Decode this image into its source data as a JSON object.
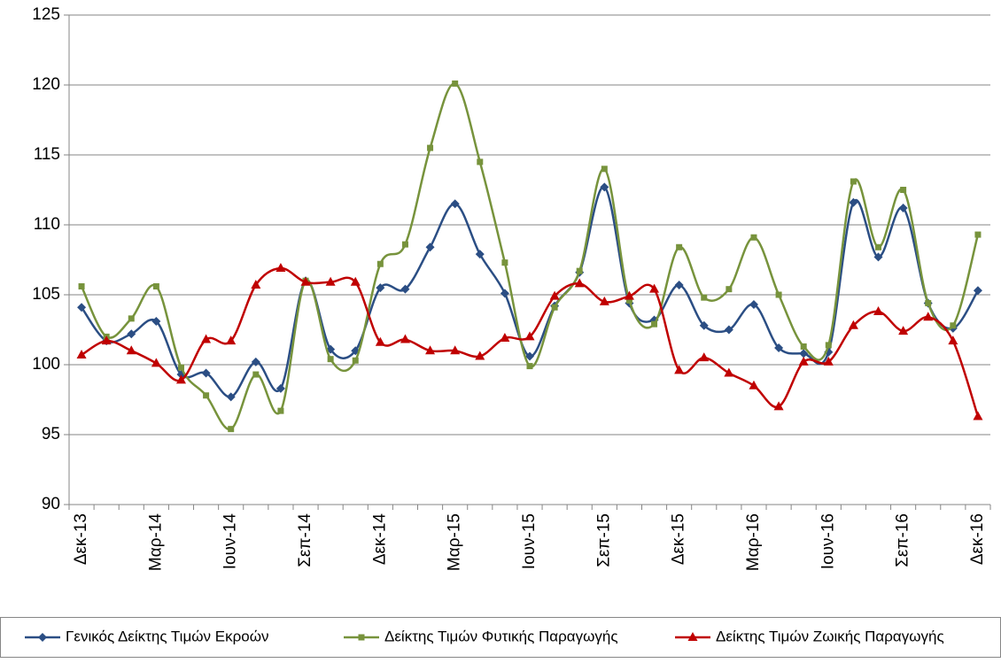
{
  "chart_data": {
    "type": "line",
    "categories": [
      "Δεκ-13",
      null,
      null,
      "Μαρ-14",
      null,
      null,
      "Ιουν-14",
      null,
      null,
      "Σεπ-14",
      null,
      null,
      "Δεκ-14",
      null,
      null,
      "Μαρ-15",
      null,
      null,
      "Ιουν-15",
      null,
      null,
      "Σεπ-15",
      null,
      null,
      "Δεκ-15",
      null,
      null,
      "Μαρ-16",
      null,
      null,
      "Ιουν-16",
      null,
      null,
      "Σεπ-16",
      null,
      null,
      "Δεκ-16"
    ],
    "series": [
      {
        "name": "Γενικός Δείκτης Τιμών Εκροών",
        "color": "#2b4e84",
        "marker": "diamond",
        "values": [
          104.1,
          101.7,
          102.2,
          103.1,
          99.3,
          99.4,
          97.7,
          100.2,
          98.3,
          106.0,
          101.1,
          101.0,
          105.5,
          105.4,
          108.4,
          111.5,
          107.9,
          105.1,
          100.6,
          104.2,
          106.6,
          112.7,
          104.4,
          103.2,
          105.7,
          102.8,
          102.5,
          104.3,
          101.2,
          100.8,
          100.9,
          111.6,
          107.7,
          111.2,
          104.4,
          102.6,
          105.3
        ]
      },
      {
        "name": "Δείκτης Τιμών Φυτικής Παραγωγής",
        "color": "#77933c",
        "marker": "square",
        "values": [
          105.6,
          102.0,
          103.3,
          105.6,
          99.8,
          97.8,
          95.4,
          99.3,
          96.7,
          106.0,
          100.4,
          100.3,
          107.2,
          108.6,
          115.5,
          120.1,
          114.5,
          107.3,
          99.9,
          104.1,
          106.7,
          114.0,
          104.6,
          102.9,
          108.4,
          104.8,
          105.4,
          109.1,
          105.0,
          101.3,
          101.4,
          113.1,
          108.4,
          112.5,
          104.4,
          102.8,
          109.3
        ]
      },
      {
        "name": "Δείκτης Τιμών Ζωικής Παραγωγής",
        "color": "#c00000",
        "marker": "triangle",
        "values": [
          100.7,
          101.7,
          101.0,
          100.1,
          98.9,
          101.8,
          101.7,
          105.7,
          106.9,
          105.9,
          105.9,
          105.9,
          101.6,
          101.8,
          101.0,
          101.0,
          100.6,
          101.9,
          102.0,
          104.9,
          105.8,
          104.5,
          104.9,
          105.4,
          99.6,
          100.5,
          99.4,
          98.5,
          97.0,
          100.2,
          100.2,
          102.8,
          103.8,
          102.4,
          103.4,
          101.7,
          96.3
        ]
      }
    ],
    "ylim": [
      90,
      125
    ],
    "yticks": [
      90,
      95,
      100,
      105,
      110,
      115,
      120,
      125
    ],
    "grid": true,
    "legend": "bottom"
  }
}
